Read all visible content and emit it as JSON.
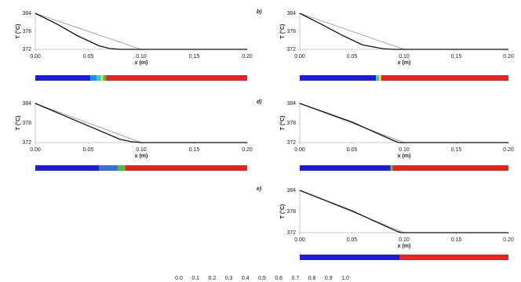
{
  "chart_data": [
    {
      "type": "line",
      "xlabel": "x (m)",
      "ylabel": "T (°C)",
      "xlim": [
        0,
        0.2
      ],
      "ylim": [
        372,
        384
      ],
      "xticks": [
        {
          "value": 0,
          "label": "0.00"
        },
        {
          "value": 0.05,
          "label": "0.05"
        },
        {
          "value": 0.1,
          "label": "0.10"
        },
        {
          "value": 0.15,
          "label": "0.15"
        },
        {
          "value": 0.2,
          "label": "0.20"
        }
      ],
      "yticks": [
        372,
        378,
        384
      ],
      "series": [
        {
          "color": "#9a9a9a",
          "x": [
            0,
            0.1,
            0.2
          ],
          "values": [
            384,
            372,
            372
          ]
        },
        {
          "color": "#111111",
          "x": [
            0,
            0.02,
            0.04,
            0.06,
            0.07,
            0.08,
            0.2
          ],
          "values": [
            384,
            380.5,
            376.5,
            373.2,
            372.3,
            372,
            372
          ]
        }
      ],
      "phase_bar": [
        {
          "x0": 0,
          "x1": 0.052,
          "color": "#1c1ce0"
        },
        {
          "x0": 0.052,
          "x1": 0.058,
          "color": "#1e8cf0"
        },
        {
          "x0": 0.058,
          "x1": 0.062,
          "color": "#22d0d8"
        },
        {
          "x0": 0.062,
          "x1": 0.064,
          "color": "#f0e020"
        },
        {
          "x0": 0.064,
          "x1": 0.067,
          "color": "#40c040"
        },
        {
          "x0": 0.067,
          "x1": 0.2,
          "color": "#e8231f"
        }
      ]
    },
    {
      "type": "line",
      "panel_label": "b)",
      "xlabel": "x (m)",
      "ylabel": "T (°C)",
      "xlim": [
        0,
        0.2
      ],
      "ylim": [
        372,
        384
      ],
      "xticks": [
        {
          "value": 0,
          "label": "0.00"
        },
        {
          "value": 0.05,
          "label": "0.05"
        },
        {
          "value": 0.1,
          "label": "0.10"
        },
        {
          "value": 0.15,
          "label": "0.15"
        },
        {
          "value": 0.2,
          "label": "0.20"
        }
      ],
      "yticks": [
        372,
        378,
        384
      ],
      "series": [
        {
          "color": "#9a9a9a",
          "x": [
            0,
            0.1,
            0.2
          ],
          "values": [
            384,
            372,
            372
          ]
        },
        {
          "color": "#111111",
          "x": [
            0,
            0.02,
            0.04,
            0.06,
            0.08,
            0.09,
            0.2
          ],
          "values": [
            384,
            380.5,
            376.8,
            373.5,
            372.2,
            372,
            372
          ]
        }
      ],
      "phase_bar": [
        {
          "x0": 0,
          "x1": 0.073,
          "color": "#1c1ce0"
        },
        {
          "x0": 0.073,
          "x1": 0.076,
          "color": "#22d0d8"
        },
        {
          "x0": 0.076,
          "x1": 0.078,
          "color": "#f0e020"
        },
        {
          "x0": 0.078,
          "x1": 0.2,
          "color": "#e8231f"
        }
      ]
    },
    {
      "type": "line",
      "xlabel": "x (m)",
      "ylabel": "T (°C)",
      "xlim": [
        0,
        0.2
      ],
      "ylim": [
        372,
        384
      ],
      "xticks": [
        {
          "value": 0,
          "label": "0.00"
        },
        {
          "value": 0.05,
          "label": "0.05"
        },
        {
          "value": 0.1,
          "label": "0.10"
        },
        {
          "value": 0.15,
          "label": "0.15"
        },
        {
          "value": 0.2,
          "label": "0.20"
        }
      ],
      "yticks": [
        372,
        378,
        384
      ],
      "series": [
        {
          "color": "#9a9a9a",
          "x": [
            0,
            0.1,
            0.2
          ],
          "values": [
            384,
            372,
            372
          ]
        },
        {
          "color": "#111111",
          "x": [
            0,
            0.04,
            0.08,
            0.09,
            0.1,
            0.2
          ],
          "values": [
            384,
            378.5,
            373,
            372.3,
            372,
            372
          ]
        }
      ],
      "phase_bar": [
        {
          "x0": 0,
          "x1": 0.06,
          "color": "#1c1ce0"
        },
        {
          "x0": 0.06,
          "x1": 0.078,
          "color": "#3a6fd8"
        },
        {
          "x0": 0.078,
          "x1": 0.085,
          "color": "#40c040"
        },
        {
          "x0": 0.085,
          "x1": 0.2,
          "color": "#e8231f"
        }
      ]
    },
    {
      "type": "line",
      "panel_label": "d)",
      "xlabel": "x (m)",
      "ylabel": "T (°C)",
      "xlim": [
        0,
        0.2
      ],
      "ylim": [
        372,
        384
      ],
      "xticks": [
        {
          "value": 0,
          "label": "0.00"
        },
        {
          "value": 0.05,
          "label": "0.05"
        },
        {
          "value": 0.1,
          "label": "0.10"
        },
        {
          "value": 0.15,
          "label": "0.15"
        },
        {
          "value": 0.2,
          "label": "0.20"
        }
      ],
      "yticks": [
        372,
        378,
        384
      ],
      "series": [
        {
          "color": "#9a9a9a",
          "x": [
            0,
            0.1,
            0.2
          ],
          "values": [
            384,
            372,
            372
          ]
        },
        {
          "color": "#111111",
          "x": [
            0,
            0.05,
            0.09,
            0.095,
            0.2
          ],
          "values": [
            384,
            378.3,
            372.6,
            372,
            372
          ]
        }
      ],
      "phase_bar": [
        {
          "x0": 0,
          "x1": 0.087,
          "color": "#1c1ce0"
        },
        {
          "x0": 0.087,
          "x1": 0.089,
          "color": "#40c040"
        },
        {
          "x0": 0.089,
          "x1": 0.2,
          "color": "#e8231f"
        }
      ]
    },
    {
      "type": "line",
      "panel_label": "e)",
      "xlabel": "x (m)",
      "ylabel": "T (°C)",
      "xlim": [
        0,
        0.2
      ],
      "ylim": [
        372,
        384
      ],
      "xticks": [
        {
          "value": 0,
          "label": "0.00"
        },
        {
          "value": 0.05,
          "label": "0.05"
        },
        {
          "value": 0.1,
          "label": "0.10"
        },
        {
          "value": 0.15,
          "label": "0.15"
        },
        {
          "value": 0.2,
          "label": "0.20"
        }
      ],
      "yticks": [
        372,
        378,
        384
      ],
      "series": [
        {
          "color": "#9a9a9a",
          "x": [
            0,
            0.1,
            0.2
          ],
          "values": [
            384,
            372,
            372
          ]
        },
        {
          "color": "#111111",
          "x": [
            0,
            0.05,
            0.093,
            0.097,
            0.2
          ],
          "values": [
            384,
            378.2,
            372.4,
            372,
            372
          ]
        }
      ],
      "phase_bar": [
        {
          "x0": 0,
          "x1": 0.096,
          "color": "#1c1ce0"
        },
        {
          "x0": 0.096,
          "x1": 0.2,
          "color": "#e8231f"
        }
      ]
    }
  ],
  "colorbar": {
    "ticks": [
      {
        "value": 0,
        "label": "0.0"
      },
      0.1,
      0.2,
      0.3,
      0.4,
      0.5,
      0.6,
      0.7,
      0.8,
      0.9,
      {
        "value": 1,
        "label": "1.0"
      }
    ]
  }
}
